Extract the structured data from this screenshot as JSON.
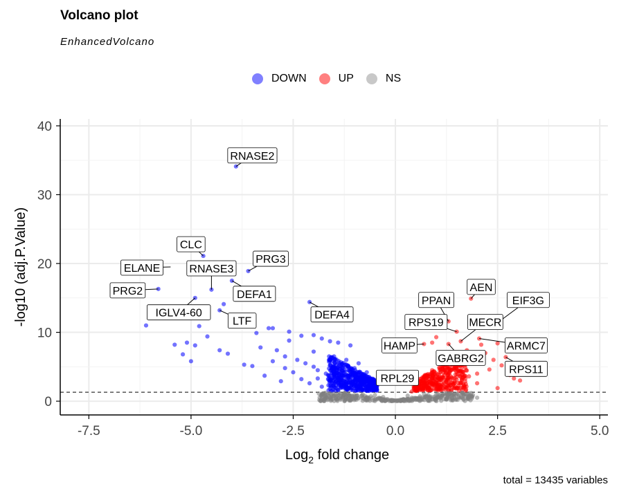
{
  "chart_data": {
    "type": "scatter",
    "title": "Volcano plot",
    "subtitle": "EnhancedVolcano",
    "xlabel_main": "Log",
    "xlabel_sub": "2",
    "xlabel_rest": " fold change",
    "ylabel": "-log10 (adj.P.Value)",
    "xlim": [
      -8.2,
      5.2
    ],
    "ylim": [
      -2,
      41
    ],
    "xticks": [
      -7.5,
      -5.0,
      -2.5,
      0.0,
      2.5,
      5.0
    ],
    "xtick_labels": [
      "-7.5",
      "-5.0",
      "-2.5",
      "0.0",
      "2.5",
      "5.0"
    ],
    "yticks": [
      0,
      10,
      20,
      30,
      40
    ],
    "ytick_labels": [
      "0",
      "10",
      "20",
      "30",
      "40"
    ],
    "threshold_y": 1.3,
    "grid": true,
    "legend": {
      "position": "top",
      "items": [
        {
          "label": "DOWN",
          "color": "#5b5bff"
        },
        {
          "label": "UP",
          "color": "#ff5b5b"
        },
        {
          "label": "NS",
          "color": "#bdbdbd"
        }
      ]
    },
    "caption": "total = 13435 variables",
    "series": [
      {
        "name": "DOWN",
        "color": "#0000ff",
        "points": [
          [
            -3.9,
            34.1
          ],
          [
            -4.7,
            21.1
          ],
          [
            -3.6,
            18.9
          ],
          [
            -4.0,
            17.5
          ],
          [
            -4.5,
            16.2
          ],
          [
            -5.8,
            16.3
          ],
          [
            -4.9,
            15.0
          ],
          [
            -4.2,
            14.1
          ],
          [
            -2.1,
            14.4
          ],
          [
            -4.3,
            13.2
          ],
          [
            -5.9,
            12.9
          ],
          [
            -6.1,
            11.0
          ],
          [
            -4.8,
            10.9
          ],
          [
            -3.1,
            10.6
          ],
          [
            -3.0,
            10.6
          ],
          [
            -2.6,
            10.1
          ],
          [
            -3.4,
            9.9
          ],
          [
            -4.6,
            9.4
          ],
          [
            -5.1,
            8.5
          ],
          [
            -5.4,
            8.2
          ],
          [
            -4.9,
            8.1
          ],
          [
            -4.3,
            7.4
          ],
          [
            -4.1,
            6.9
          ],
          [
            -5.2,
            6.8
          ],
          [
            -5.0,
            5.8
          ],
          [
            -3.7,
            5.3
          ],
          [
            -3.5,
            5.1
          ],
          [
            -3.2,
            3.7
          ],
          [
            -2.8,
            2.9
          ],
          [
            -2.6,
            8.8
          ],
          [
            -2.3,
            9.5
          ],
          [
            -2.0,
            9.6
          ],
          [
            -1.8,
            9.1
          ],
          [
            -1.6,
            8.7
          ],
          [
            -1.4,
            8.5
          ],
          [
            -1.1,
            8.1
          ],
          [
            -2.9,
            7.4
          ],
          [
            -2.7,
            6.5
          ],
          [
            -2.4,
            6.0
          ],
          [
            -2.2,
            5.5
          ],
          [
            -2.0,
            5.0
          ],
          [
            -1.9,
            4.5
          ],
          [
            -1.7,
            4.0
          ],
          [
            -1.5,
            3.5
          ],
          [
            -1.3,
            3.0
          ],
          [
            -1.2,
            2.5
          ],
          [
            -1.0,
            2.2
          ],
          [
            -0.9,
            1.9
          ],
          [
            -0.8,
            1.7
          ],
          [
            -0.7,
            1.5
          ],
          [
            -1.5,
            6.5
          ],
          [
            -1.2,
            6.0
          ],
          [
            -0.9,
            5.5
          ],
          [
            -0.7,
            4.2
          ],
          [
            -0.6,
            3.0
          ],
          [
            -0.5,
            2.2
          ],
          [
            -0.45,
            1.6
          ],
          [
            -2.5,
            4.2
          ],
          [
            -2.3,
            3.2
          ],
          [
            -2.1,
            2.6
          ],
          [
            -1.8,
            2.1
          ],
          [
            -1.6,
            1.8
          ],
          [
            -1.4,
            1.6
          ],
          [
            -3.0,
            5.8
          ],
          [
            -3.3,
            7.8
          ],
          [
            -2.0,
            7.2
          ],
          [
            -1.0,
            4.8
          ],
          [
            -0.8,
            3.6
          ],
          [
            -1.9,
            3.3
          ],
          [
            -2.7,
            4.8
          ]
        ]
      },
      {
        "name": "UP",
        "color": "#ff0000",
        "points": [
          [
            1.85,
            14.9
          ],
          [
            1.3,
            11.6
          ],
          [
            1.5,
            10.1
          ],
          [
            1.0,
            9.3
          ],
          [
            2.05,
            9.1
          ],
          [
            2.1,
            8.2
          ],
          [
            1.6,
            8.7
          ],
          [
            1.3,
            8.3
          ],
          [
            0.9,
            8.5
          ],
          [
            0.7,
            8.3
          ],
          [
            2.5,
            8.4
          ],
          [
            1.75,
            7.4
          ],
          [
            2.7,
            6.4
          ],
          [
            2.4,
            6.0
          ],
          [
            2.6,
            5.2
          ],
          [
            2.3,
            4.6
          ],
          [
            2.0,
            4.0
          ],
          [
            1.8,
            3.6
          ],
          [
            1.5,
            3.1
          ],
          [
            1.2,
            2.6
          ],
          [
            1.0,
            2.2
          ],
          [
            0.8,
            1.9
          ],
          [
            0.6,
            1.6
          ],
          [
            2.9,
            3.3
          ],
          [
            3.05,
            3.0
          ],
          [
            2.5,
            1.9
          ],
          [
            0.5,
            1.5
          ],
          [
            0.9,
            4.5
          ],
          [
            0.7,
            3.5
          ],
          [
            0.6,
            2.8
          ],
          [
            1.4,
            5.5
          ],
          [
            1.1,
            4.2
          ],
          [
            1.7,
            5.2
          ],
          [
            1.9,
            6.2
          ],
          [
            2.2,
            7.0
          ],
          [
            0.4,
            1.4
          ],
          [
            0.45,
            2.2
          ],
          [
            1.3,
            6.8
          ],
          [
            2.0,
            2.6
          ],
          [
            2.8,
            3.8
          ]
        ]
      },
      {
        "name": "NS",
        "color": "#7f7f7f",
        "points": [
          [
            -1.2,
            0.6
          ],
          [
            -1.0,
            0.9
          ],
          [
            -0.8,
            1.0
          ],
          [
            -0.6,
            0.7
          ],
          [
            -0.4,
            0.5
          ],
          [
            -0.2,
            0.3
          ],
          [
            0.0,
            0.1
          ],
          [
            0.2,
            0.3
          ],
          [
            0.4,
            0.5
          ],
          [
            0.6,
            0.7
          ],
          [
            0.8,
            0.9
          ],
          [
            1.0,
            1.0
          ],
          [
            1.2,
            0.8
          ],
          [
            1.4,
            0.9
          ],
          [
            1.6,
            0.6
          ],
          [
            -1.5,
            0.8
          ],
          [
            -1.7,
            0.5
          ],
          [
            -1.35,
            1.1
          ],
          [
            1.8,
            0.8
          ],
          [
            2.0,
            0.5
          ],
          [
            -0.9,
            0.4
          ],
          [
            -0.5,
            0.9
          ],
          [
            0.3,
            0.8
          ],
          [
            0.7,
            1.1
          ],
          [
            1.1,
            0.4
          ],
          [
            -0.3,
            0.6
          ],
          [
            0.5,
            0.2
          ],
          [
            -0.7,
            0.2
          ],
          [
            0.9,
            0.3
          ],
          [
            1.5,
            1.1
          ]
        ]
      }
    ],
    "labels": [
      {
        "text": "RNASE2",
        "x": -3.9,
        "y": 34.1,
        "lx": -3.5,
        "ly": 35.7
      },
      {
        "text": "CLC",
        "x": -4.7,
        "y": 21.1,
        "lx": -5.0,
        "ly": 22.8
      },
      {
        "text": "PRG3",
        "x": -3.6,
        "y": 18.9,
        "lx": -3.05,
        "ly": 20.7
      },
      {
        "text": "ELANE",
        "x": -5.5,
        "y": 19.5,
        "lx": -6.2,
        "ly": 19.4
      },
      {
        "text": "RNASE3",
        "x": -4.5,
        "y": 16.2,
        "lx": -4.5,
        "ly": 19.3
      },
      {
        "text": "PRG2",
        "x": -5.8,
        "y": 16.3,
        "lx": -6.55,
        "ly": 16.1
      },
      {
        "text": "DEFA1",
        "x": -4.0,
        "y": 17.5,
        "lx": -3.45,
        "ly": 15.6
      },
      {
        "text": "IGLV4-60",
        "x": -4.9,
        "y": 15.0,
        "lx": -5.3,
        "ly": 12.9
      },
      {
        "text": "LTF",
        "x": -4.3,
        "y": 13.2,
        "lx": -3.75,
        "ly": 11.7
      },
      {
        "text": "DEFA4",
        "x": -2.1,
        "y": 14.4,
        "lx": -1.55,
        "ly": 12.6
      },
      {
        "text": "AEN",
        "x": 1.85,
        "y": 14.9,
        "lx": 2.1,
        "ly": 16.6
      },
      {
        "text": "PPAN",
        "x": 1.3,
        "y": 11.6,
        "lx": 1.0,
        "ly": 14.7
      },
      {
        "text": "EIF3G",
        "x": 2.5,
        "y": 11.4,
        "lx": 3.25,
        "ly": 14.7
      },
      {
        "text": "RPS19",
        "x": 1.5,
        "y": 10.1,
        "lx": 0.75,
        "ly": 11.5
      },
      {
        "text": "MECR",
        "x": 1.6,
        "y": 8.7,
        "lx": 2.2,
        "ly": 11.5
      },
      {
        "text": "HAMP",
        "x": 0.7,
        "y": 8.3,
        "lx": 0.1,
        "ly": 8.1
      },
      {
        "text": "ARMC7",
        "x": 2.05,
        "y": 9.1,
        "lx": 3.2,
        "ly": 8.1
      },
      {
        "text": "GABRG2",
        "x": 1.3,
        "y": 8.3,
        "lx": 1.6,
        "ly": 6.3
      },
      {
        "text": "RPS11",
        "x": 2.7,
        "y": 6.4,
        "lx": 3.2,
        "ly": 4.7
      },
      {
        "text": "RPL29",
        "x": 0.5,
        "y": 3.0,
        "lx": 0.05,
        "ly": 3.4
      }
    ]
  }
}
